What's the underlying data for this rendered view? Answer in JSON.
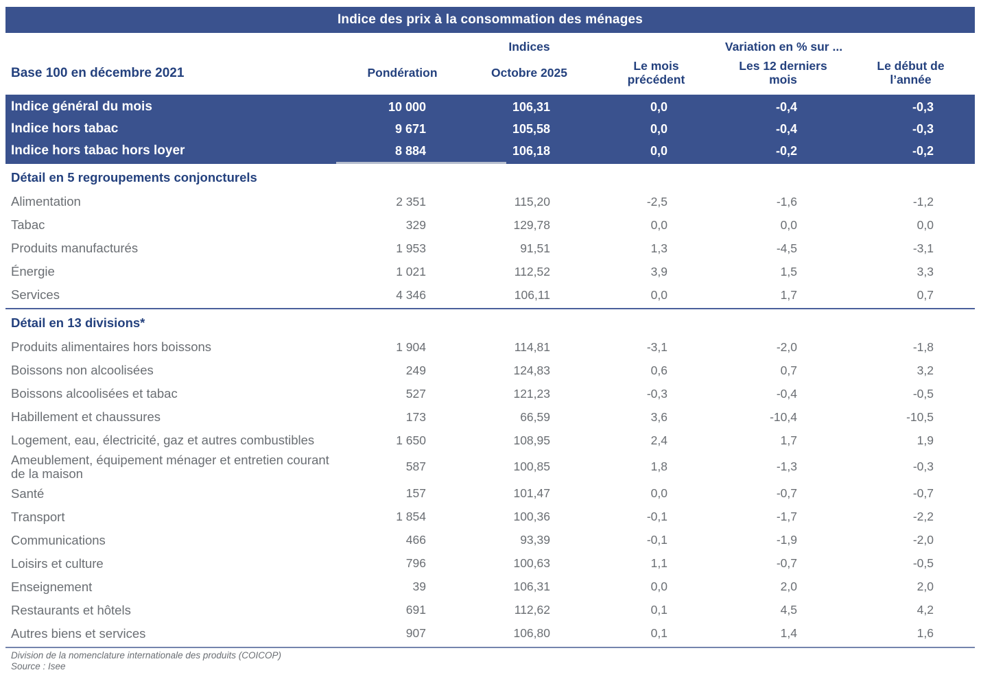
{
  "title": "Indice des prix à la consommation des ménages",
  "colors": {
    "header_blue": "#3a528e",
    "navy_text": "#24417e",
    "body_grey": "#6a6e73",
    "row_text_on_blue": "#ffffff"
  },
  "header": {
    "base_label": "Base 100 en décembre 2021",
    "group_indices": "Indices",
    "group_variation": "Variation en % sur ...",
    "col_ponderation": "Pondération",
    "col_month": "Octobre 2025",
    "col_prev_month": "Le mois précédent",
    "col_last_12_months": "Les 12 derniers mois",
    "col_year_start": "Le début de l’année"
  },
  "summary_rows": [
    {
      "label": "Indice général du mois",
      "weight": "10 000",
      "index": "106,31",
      "m": "0,0",
      "y12": "-0,4",
      "ytd": "-0,3"
    },
    {
      "label": "Indice hors tabac",
      "weight": "9 671",
      "index": "105,58",
      "m": "0,0",
      "y12": "-0,4",
      "ytd": "-0,3"
    },
    {
      "label": "Indice hors tabac hors loyer",
      "weight": "8 884",
      "index": "106,18",
      "m": "0,0",
      "y12": "-0,2",
      "ytd": "-0,2"
    }
  ],
  "sections": [
    {
      "heading": "Détail en 5 regroupements conjoncturels",
      "rows": [
        {
          "label": "Alimentation",
          "weight": "2 351",
          "index": "115,20",
          "m": "-2,5",
          "y12": "-1,6",
          "ytd": "-1,2"
        },
        {
          "label": "Tabac",
          "weight": "329",
          "index": "129,78",
          "m": "0,0",
          "y12": "0,0",
          "ytd": "0,0"
        },
        {
          "label": "Produits manufacturés",
          "weight": "1 953",
          "index": "91,51",
          "m": "1,3",
          "y12": "-4,5",
          "ytd": "-3,1"
        },
        {
          "label": "Énergie",
          "weight": "1 021",
          "index": "112,52",
          "m": "3,9",
          "y12": "1,5",
          "ytd": "3,3"
        },
        {
          "label": "Services",
          "weight": "4 346",
          "index": "106,11",
          "m": "0,0",
          "y12": "1,7",
          "ytd": "0,7"
        }
      ]
    },
    {
      "heading": "Détail en 13 divisions*",
      "rows": [
        {
          "label": "Produits alimentaires hors boissons",
          "weight": "1 904",
          "index": "114,81",
          "m": "-3,1",
          "y12": "-2,0",
          "ytd": "-1,8"
        },
        {
          "label": "Boissons non alcoolisées",
          "weight": "249",
          "index": "124,83",
          "m": "0,6",
          "y12": "0,7",
          "ytd": "3,2"
        },
        {
          "label": "Boissons alcoolisées et tabac",
          "weight": "527",
          "index": "121,23",
          "m": "-0,3",
          "y12": "-0,4",
          "ytd": "-0,5"
        },
        {
          "label": "Habillement et chaussures",
          "weight": "173",
          "index": "66,59",
          "m": "3,6",
          "y12": "-10,4",
          "ytd": "-10,5"
        },
        {
          "label": "Logement, eau, électricité, gaz et autres combustibles",
          "weight": "1 650",
          "index": "108,95",
          "m": "2,4",
          "y12": "1,7",
          "ytd": "1,9"
        },
        {
          "label": "Ameublement, équipement ménager et entretien courant de la maison",
          "weight": "587",
          "index": "100,85",
          "m": "1,8",
          "y12": "-1,3",
          "ytd": "-0,3"
        },
        {
          "label": "Santé",
          "weight": "157",
          "index": "101,47",
          "m": "0,0",
          "y12": "-0,7",
          "ytd": "-0,7"
        },
        {
          "label": "Transport",
          "weight": "1 854",
          "index": "100,36",
          "m": "-0,1",
          "y12": "-1,7",
          "ytd": "-2,2"
        },
        {
          "label": "Communications",
          "weight": "466",
          "index": "93,39",
          "m": "-0,1",
          "y12": "-1,9",
          "ytd": "-2,0"
        },
        {
          "label": "Loisirs et culture",
          "weight": "796",
          "index": "100,63",
          "m": "1,1",
          "y12": "-0,7",
          "ytd": "-0,5"
        },
        {
          "label": "Enseignement",
          "weight": "39",
          "index": "106,31",
          "m": "0,0",
          "y12": "2,0",
          "ytd": "2,0"
        },
        {
          "label": "Restaurants et hôtels",
          "weight": "691",
          "index": "112,62",
          "m": "0,1",
          "y12": "4,5",
          "ytd": "4,2"
        },
        {
          "label": "Autres biens et services",
          "weight": "907",
          "index": "106,80",
          "m": "0,1",
          "y12": "1,4",
          "ytd": "1,6"
        }
      ]
    }
  ],
  "footnotes": {
    "coicop": "Division de la nomenclature internationale des produits (COICOP)",
    "source": "Source : Isee"
  }
}
